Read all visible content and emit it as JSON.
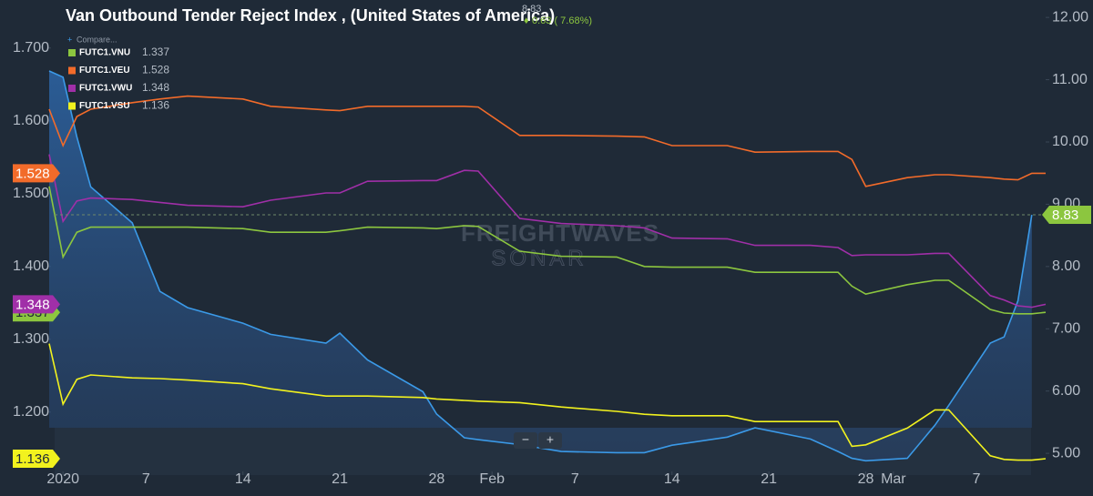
{
  "chart_data": {
    "type": "line",
    "title": "Van Outbound Tender Reject Index , (United States of America)",
    "change_label": "0.63 ( 7.68%)",
    "compare_label": "Compare...",
    "watermark": [
      "FREIGHTWAVES",
      "SONAR"
    ],
    "zoom_buttons": [
      "−",
      "+"
    ],
    "x": [
      "2019-12-31",
      "2020-01-01",
      "2020-01-02",
      "2020-01-03",
      "2020-01-06",
      "2020-01-08",
      "2020-01-10",
      "2020-01-14",
      "2020-01-16",
      "2020-01-20",
      "2020-01-21",
      "2020-01-23",
      "2020-01-27",
      "2020-01-28",
      "2020-01-30",
      "2020-01-31",
      "2020-02-03",
      "2020-02-06",
      "2020-02-10",
      "2020-02-12",
      "2020-02-14",
      "2020-02-18",
      "2020-02-20",
      "2020-02-24",
      "2020-02-26",
      "2020-02-27",
      "2020-02-28",
      "2020-03-02",
      "2020-03-04",
      "2020-03-05",
      "2020-03-08",
      "2020-03-09",
      "2020-03-10",
      "2020-03-11",
      "2020-03-12"
    ],
    "xlim": [
      "2019-12-31",
      "2020-03-12"
    ],
    "xticks": [
      {
        "value": "2020-01-01",
        "label": "2020"
      },
      {
        "value": "2020-01-07",
        "label": "7"
      },
      {
        "value": "2020-01-14",
        "label": "14"
      },
      {
        "value": "2020-01-21",
        "label": "21"
      },
      {
        "value": "2020-01-28",
        "label": "28"
      },
      {
        "value": "2020-02-01",
        "label": "Feb"
      },
      {
        "value": "2020-02-07",
        "label": "7"
      },
      {
        "value": "2020-02-14",
        "label": "14"
      },
      {
        "value": "2020-02-21",
        "label": "21"
      },
      {
        "value": "2020-02-28",
        "label": "28"
      },
      {
        "value": "2020-03-01",
        "label": "Mar"
      },
      {
        "value": "2020-03-07",
        "label": "7"
      }
    ],
    "ylim": [
      1.116,
      1.766
    ],
    "yticks": [
      {
        "value": 1.2,
        "label": "1.200"
      },
      {
        "value": 1.3,
        "label": "1.300"
      },
      {
        "value": 1.4,
        "label": "1.400"
      },
      {
        "value": 1.5,
        "label": "1.500"
      },
      {
        "value": 1.6,
        "label": "1.600"
      },
      {
        "value": 1.7,
        "label": "1.700"
      }
    ],
    "y2lim": [
      4.68,
      12.28
    ],
    "y2ticks": [
      {
        "value": 5,
        "label": "5.00"
      },
      {
        "value": 6,
        "label": "6.00"
      },
      {
        "value": 7,
        "label": "7.00"
      },
      {
        "value": 8,
        "label": "8.00"
      },
      {
        "value": 9,
        "label": "9.00"
      },
      {
        "value": 10,
        "label": "10.00"
      },
      {
        "value": 11,
        "label": "11.00"
      },
      {
        "value": 12,
        "label": "12.00"
      }
    ],
    "series": [
      {
        "axis": "y2",
        "color": "#3b9ae8",
        "area": true,
        "values": [
          11.14,
          11.04,
          10.08,
          9.28,
          8.7,
          7.6,
          7.34,
          7.09,
          6.91,
          6.77,
          6.93,
          6.5,
          5.99,
          5.63,
          5.25,
          5.22,
          5.14,
          5.03,
          5.01,
          5.01,
          5.13,
          5.26,
          5.41,
          5.23,
          5.03,
          4.92,
          4.88,
          4.92,
          5.45,
          5.77,
          6.77,
          6.87,
          7.45,
          8.83,
          null
        ]
      },
      {
        "name": "FUTC1.VNU",
        "color": "#8cc63f",
        "values": [
          1.51,
          1.413,
          1.447,
          1.454,
          1.454,
          1.454,
          1.454,
          1.452,
          1.447,
          1.447,
          1.449,
          1.454,
          1.453,
          1.452,
          1.456,
          1.455,
          1.421,
          1.414,
          1.413,
          1.4,
          1.399,
          1.399,
          1.392,
          1.392,
          1.392,
          1.373,
          1.362,
          1.375,
          1.381,
          1.381,
          1.341,
          1.336,
          1.335,
          1.335,
          1.337
        ]
      },
      {
        "name": "FUTC1.VEU",
        "color": "#f26b2a",
        "values": [
          1.616,
          1.566,
          1.606,
          1.616,
          1.625,
          1.63,
          1.634,
          1.63,
          1.62,
          1.615,
          1.614,
          1.62,
          1.62,
          1.62,
          1.62,
          1.619,
          1.58,
          1.58,
          1.579,
          1.578,
          1.566,
          1.566,
          1.557,
          1.558,
          1.558,
          1.547,
          1.51,
          1.522,
          1.526,
          1.526,
          1.522,
          1.52,
          1.519,
          1.528,
          1.528
        ]
      },
      {
        "name": "FUTC1.VWU",
        "color": "#a02fa8",
        "values": [
          1.554,
          1.462,
          1.49,
          1.494,
          1.492,
          1.488,
          1.484,
          1.482,
          1.491,
          1.501,
          1.501,
          1.517,
          1.518,
          1.518,
          1.532,
          1.531,
          1.466,
          1.459,
          1.456,
          1.453,
          1.439,
          1.438,
          1.429,
          1.429,
          1.426,
          1.415,
          1.416,
          1.416,
          1.418,
          1.418,
          1.36,
          1.354,
          1.346,
          1.344,
          1.348
        ]
      },
      {
        "name": "FUTC1.VSU",
        "color": "#f2f21e",
        "values": [
          1.294,
          1.211,
          1.245,
          1.251,
          1.247,
          1.246,
          1.244,
          1.239,
          1.232,
          1.222,
          1.222,
          1.222,
          1.22,
          1.218,
          1.216,
          1.215,
          1.213,
          1.207,
          1.201,
          1.197,
          1.195,
          1.195,
          1.187,
          1.187,
          1.187,
          1.153,
          1.155,
          1.178,
          1.203,
          1.203,
          1.14,
          1.135,
          1.134,
          1.134,
          1.136
        ]
      }
    ]
  }
}
